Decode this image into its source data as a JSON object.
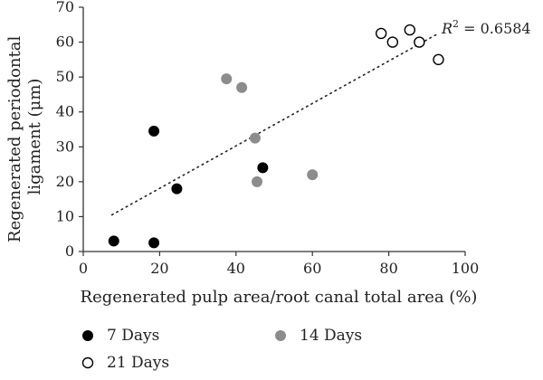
{
  "chart_data": {
    "type": "scatter",
    "xlabel": "Regenerated pulp area/root canal total area (%)",
    "ylabel_lines": [
      "Regenerated periodontal",
      "ligament (μm)"
    ],
    "xlim": [
      0,
      100
    ],
    "ylim": [
      0,
      70
    ],
    "x_ticks": [
      "0",
      "20",
      "40",
      "60",
      "80",
      "100"
    ],
    "y_ticks": [
      "0",
      "10",
      "20",
      "30",
      "40",
      "50",
      "60",
      "70"
    ],
    "x_tick_values": [
      0,
      20,
      40,
      60,
      80,
      100
    ],
    "y_tick_values": [
      0,
      10,
      20,
      30,
      40,
      50,
      60,
      70
    ],
    "grid": false,
    "legend_position": "bottom",
    "series": [
      {
        "name": "7 Days",
        "marker": "filled-black",
        "color": "#000000",
        "points": [
          [
            8,
            3
          ],
          [
            18.5,
            2.5
          ],
          [
            18.5,
            34.5
          ],
          [
            24.5,
            18
          ],
          [
            47,
            24
          ]
        ]
      },
      {
        "name": "14 Days",
        "marker": "filled-gray",
        "color": "#8c8c8c",
        "points": [
          [
            37.5,
            49.5
          ],
          [
            41.5,
            47
          ],
          [
            45,
            32.5
          ],
          [
            45.5,
            20
          ],
          [
            60,
            22
          ]
        ]
      },
      {
        "name": "21 Days",
        "marker": "hollow",
        "color": "#000000",
        "points": [
          [
            78,
            62.5
          ],
          [
            81,
            60
          ],
          [
            85.5,
            63.5
          ],
          [
            88,
            60
          ],
          [
            93,
            55
          ]
        ]
      }
    ],
    "trendline": {
      "style": "dotted",
      "x_start": 7.5,
      "x_end": 93,
      "y_start": 10.5,
      "y_end": 62.5,
      "annotation_prefix": "R",
      "annotation_power": "2",
      "annotation_value": " = 0.6584"
    }
  }
}
